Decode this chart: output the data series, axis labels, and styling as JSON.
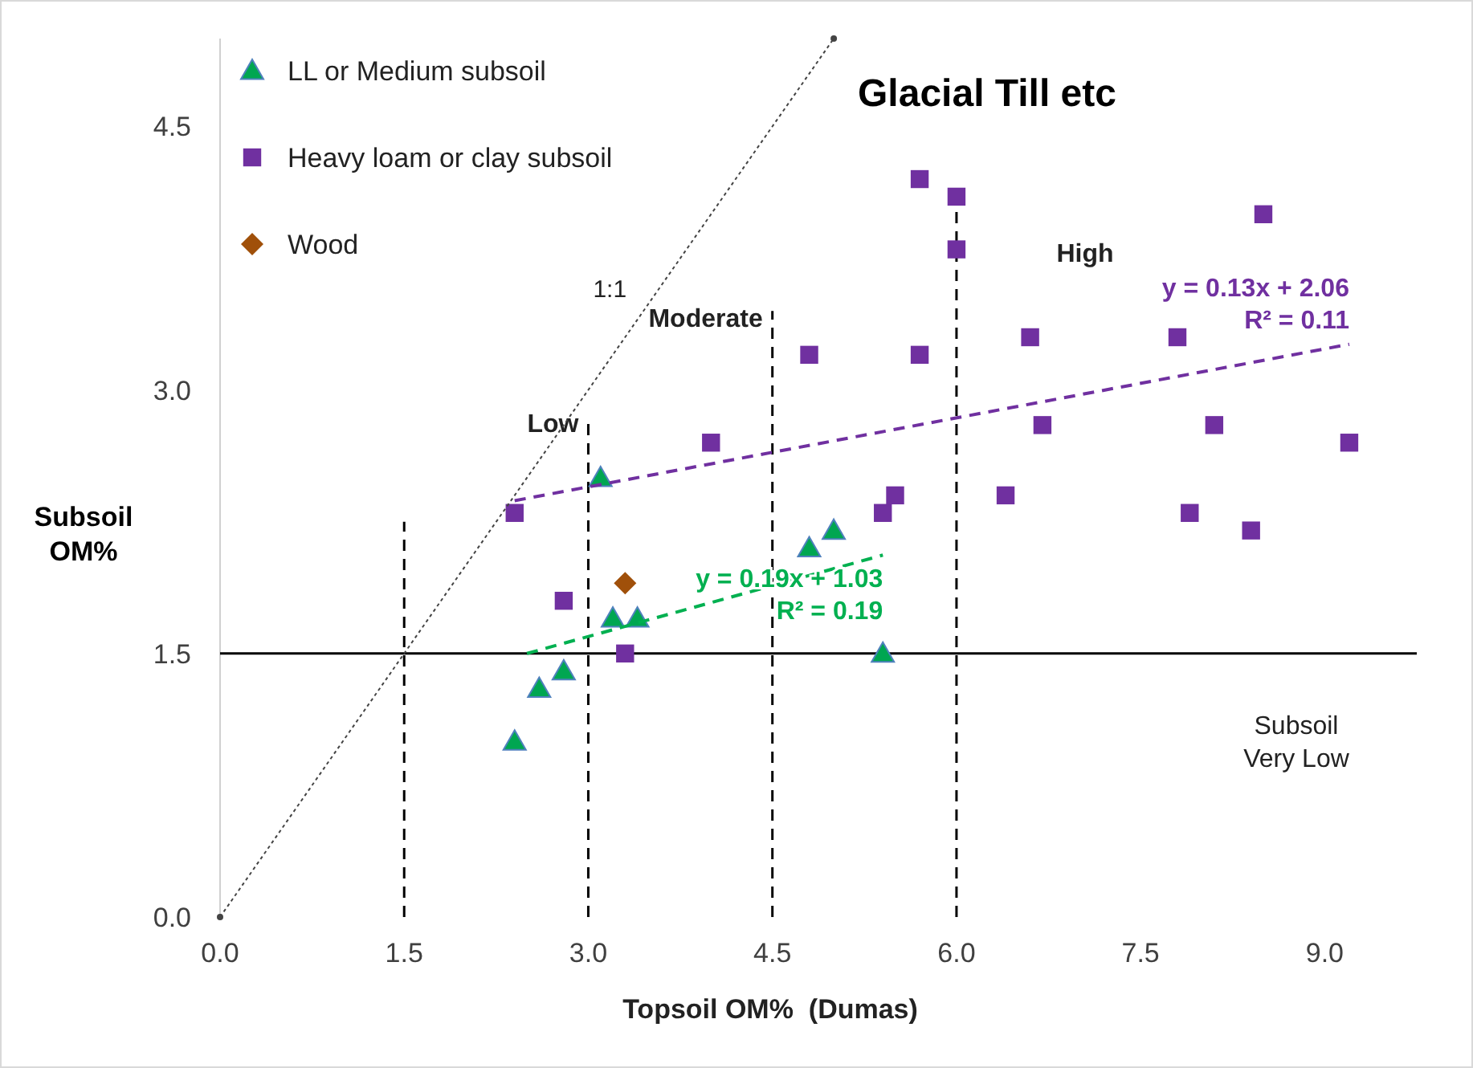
{
  "chart_data": {
    "type": "scatter",
    "title": "Glacial Till etc",
    "xlabel": "Topsoil OM%  (Dumas)",
    "ylabel": "Subsoil OM%",
    "xlim": [
      0,
      9.75
    ],
    "ylim": [
      0,
      5
    ],
    "xticks": [
      {
        "value": 0,
        "label": "0.0"
      },
      {
        "value": 1.5,
        "label": "1.5"
      },
      {
        "value": 3,
        "label": "3.0"
      },
      {
        "value": 4.5,
        "label": "4.5"
      },
      {
        "value": 6,
        "label": "6.0"
      },
      {
        "value": 7.5,
        "label": "7.5"
      },
      {
        "value": 9,
        "label": "9.0"
      }
    ],
    "yticks": [
      {
        "value": 0,
        "label": "0.0"
      },
      {
        "value": 1.5,
        "label": "1.5"
      },
      {
        "value": 3,
        "label": "3.0"
      },
      {
        "value": 4.5,
        "label": "4.5"
      }
    ],
    "legend": "top left",
    "ref_lines": [
      {
        "axis": "y",
        "value": 1.5,
        "label": "Subsoil Very Low",
        "color": "#000000",
        "line_style": "solid"
      },
      {
        "axis": "x",
        "value": 1.5,
        "color": "#000000",
        "line_style": "dashed"
      },
      {
        "axis": "x",
        "value": 3,
        "label": "Low",
        "color": "#000000",
        "line_style": "dashed"
      },
      {
        "axis": "x",
        "value": 4.5,
        "label": "Moderate",
        "color": "#000000",
        "line_style": "dashed"
      },
      {
        "axis": "x",
        "value": 6,
        "label": "High",
        "color": "#000000",
        "line_style": "dashed"
      }
    ],
    "series": [
      {
        "name": "LL or Medium subsoil",
        "marker": "triangle",
        "color": "#00a651",
        "x": [
          2.4,
          2.6,
          2.8,
          3.1,
          3.2,
          3.4,
          4.8,
          5.0,
          5.4
        ],
        "values": [
          1.0,
          1.3,
          1.4,
          2.5,
          1.7,
          1.7,
          2.1,
          2.2,
          1.5
        ]
      },
      {
        "name": "Heavy loam or clay subsoil",
        "marker": "square",
        "color": "#7030a0",
        "x": [
          2.4,
          2.8,
          3.3,
          4.0,
          4.8,
          5.4,
          5.5,
          5.7,
          5.7,
          6.0,
          6.0,
          6.4,
          6.6,
          6.7,
          7.8,
          7.9,
          8.1,
          8.4,
          8.5,
          9.2
        ],
        "values": [
          2.3,
          1.8,
          1.5,
          2.7,
          3.2,
          2.3,
          2.4,
          4.2,
          3.2,
          4.1,
          3.8,
          2.4,
          3.3,
          2.8,
          3.3,
          2.3,
          2.8,
          2.2,
          4.0,
          2.7
        ]
      },
      {
        "name": "Wood",
        "marker": "diamond",
        "color": "#a0500a",
        "x": [
          3.3
        ],
        "values": [
          1.9
        ]
      },
      {
        "name": "y = 0.13x + 2.06\nR² = 0.11",
        "type": "line",
        "line_style": "dashed",
        "color": "#7030a0",
        "x": [
          2.4,
          9.2
        ],
        "values": [
          2.37,
          3.26
        ]
      },
      {
        "name": "y = 0.19x + 1.03\nR² = 0.19",
        "type": "line",
        "line_style": "dashed",
        "color": "#00b050",
        "x": [
          2.5,
          5.4
        ],
        "values": [
          1.5,
          2.06
        ]
      },
      {
        "name": "1:1",
        "type": "line",
        "line_style": "dotted",
        "marker": "circle",
        "color": "#444444",
        "x": [
          0,
          5
        ],
        "values": [
          0,
          5
        ]
      }
    ]
  }
}
